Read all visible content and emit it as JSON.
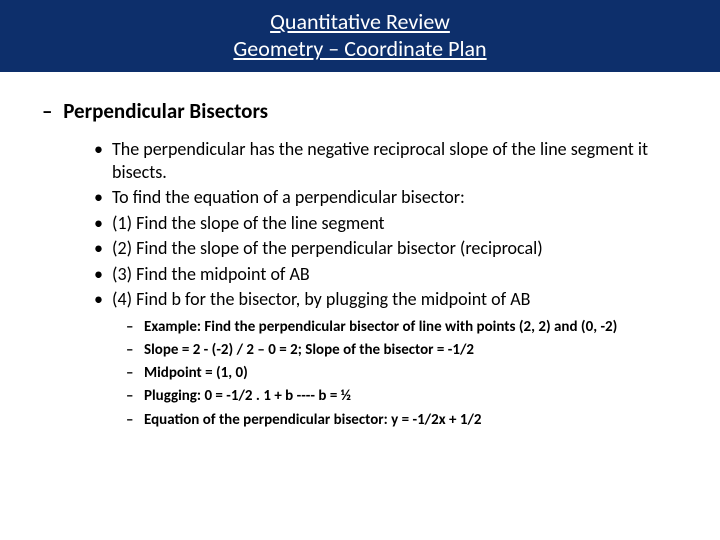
{
  "header": {
    "line1": "Quantitative Review",
    "line2": "Geometry – Coordinate Plan",
    "background_color": "#0d2f6b",
    "text_color": "#ffffff"
  },
  "section": {
    "dash": "–",
    "title": "Perpendicular Bisectors"
  },
  "bullets": [
    "The perpendicular has the negative reciprocal slope of the line segment it bisects.",
    "To find the equation of a perpendicular bisector:",
    "(1) Find the slope of the line segment",
    "(2) Find the slope of the perpendicular bisector (reciprocal)",
    "(3) Find the midpoint of AB",
    "(4) Find b for the bisector, by plugging the midpoint of AB"
  ],
  "subbullets": [
    "Example: Find the perpendicular bisector of line with points (2, 2) and (0, -2)",
    "Slope = 2 - (-2) / 2 – 0 = 2; Slope of the bisector = -1/2",
    "Midpoint = (1, 0)",
    "Plugging: 0 = -1/2 . 1 + b ---- b = ½",
    "Equation of the perpendicular bisector: y = -1/2x + 1/2"
  ],
  "markers": {
    "bullet": "•",
    "sub": "–"
  }
}
